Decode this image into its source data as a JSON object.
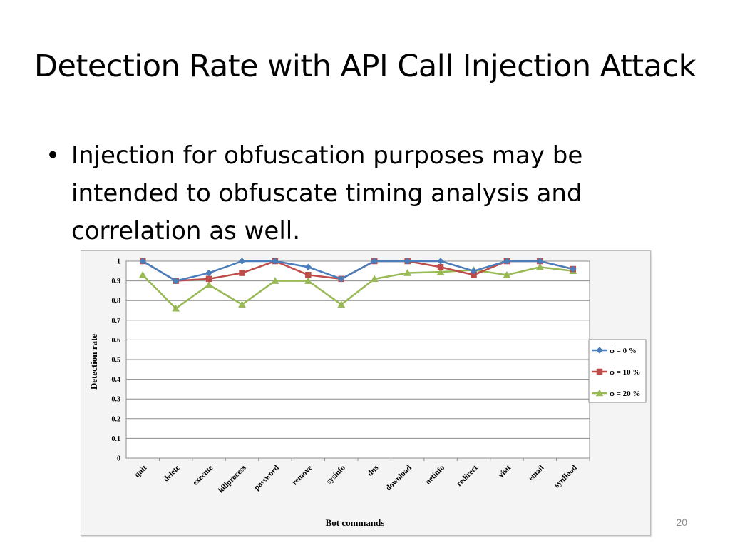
{
  "slide": {
    "title": "Detection Rate with API Call Injection Attack",
    "bullet": "Injection for obfuscation purposes may be intended to obfuscate timing analysis and correlation as well.",
    "page_number": "20"
  },
  "colors": {
    "series_blue": "#4a7ebb",
    "series_red": "#be4b48",
    "series_green": "#98b954",
    "plot_bg": "#ffffff",
    "frame_bg": "#f4f4f4",
    "grid": "#8c8c8c"
  },
  "chart_data": {
    "type": "line",
    "title": "",
    "xlabel": "Bot commands",
    "ylabel": "Detection rate",
    "ylim": [
      0,
      1
    ],
    "yticks": [
      "0",
      "0.1",
      "0.2",
      "0.3",
      "0.4",
      "0.5",
      "0.6",
      "0.7",
      "0.8",
      "0.9",
      "1"
    ],
    "grid": true,
    "legend_position": "right",
    "categories": [
      "quit",
      "delete",
      "execute",
      "killprocess",
      "password",
      "remove",
      "sysinfo",
      "dns",
      "download",
      "netinfo",
      "redirect",
      "visit",
      "email",
      "synflood"
    ],
    "series": [
      {
        "name": "ϕ = 0 %",
        "marker": "diamond",
        "color": "#4a7ebb",
        "values": [
          1.0,
          0.9,
          0.94,
          1.0,
          1.0,
          0.97,
          0.91,
          1.0,
          1.0,
          1.0,
          0.95,
          1.0,
          1.0,
          0.96
        ]
      },
      {
        "name": "ϕ = 10 %",
        "marker": "square",
        "color": "#be4b48",
        "values": [
          1.0,
          0.9,
          0.91,
          0.94,
          1.0,
          0.93,
          0.91,
          1.0,
          1.0,
          0.97,
          0.93,
          1.0,
          1.0,
          0.96
        ]
      },
      {
        "name": "ϕ = 20 %",
        "marker": "triangle",
        "color": "#98b954",
        "values": [
          0.93,
          0.76,
          0.88,
          0.78,
          0.9,
          0.9,
          0.78,
          0.91,
          0.94,
          0.945,
          0.955,
          0.93,
          0.97,
          0.95
        ]
      }
    ]
  }
}
